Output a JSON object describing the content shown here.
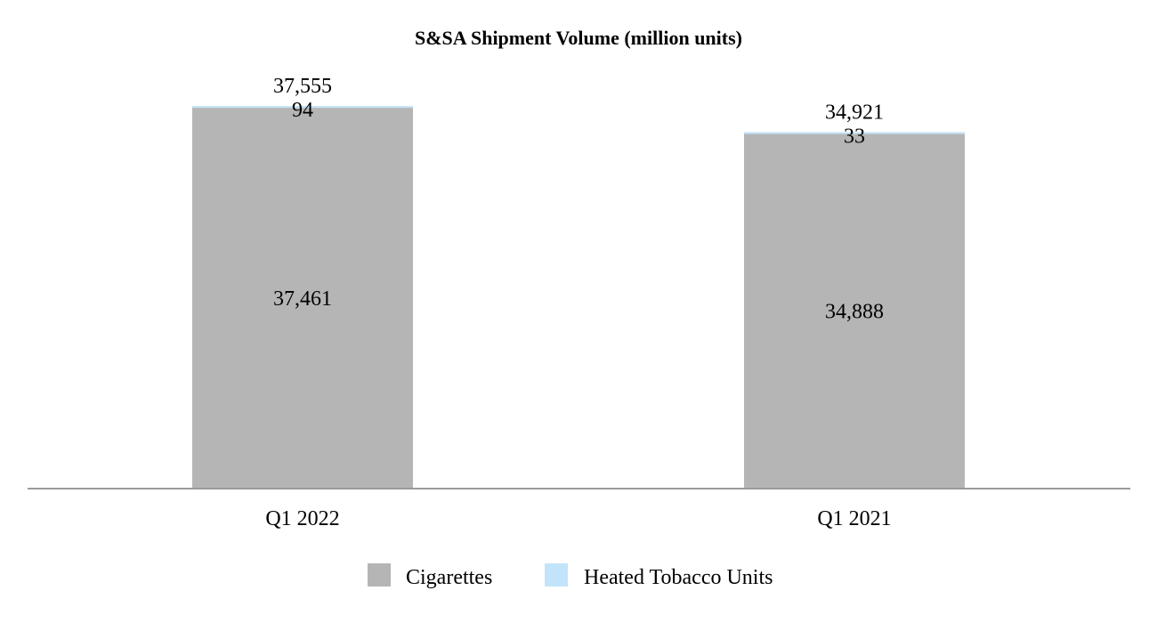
{
  "chart_data": {
    "type": "bar",
    "stacked": true,
    "title": "S&SA Shipment Volume (million units)",
    "xlabel": "",
    "ylabel": "",
    "categories": [
      "Q1 2022",
      "Q1 2021"
    ],
    "series": [
      {
        "name": "Cigarettes",
        "values": [
          37461,
          34888
        ],
        "color": "#b5b5b5",
        "labels": [
          "37,461",
          "34,888"
        ]
      },
      {
        "name": "Heated Tobacco Units",
        "values": [
          94,
          33
        ],
        "color": "#c1e4fa",
        "labels": [
          "94",
          "33"
        ]
      }
    ],
    "totals": [
      37555,
      34921
    ],
    "total_labels": [
      "37,555",
      "34,921"
    ],
    "ylim": [
      0,
      37555
    ],
    "grid": false,
    "legend": "bottom-center",
    "axis_color": "#9a9a9a"
  }
}
